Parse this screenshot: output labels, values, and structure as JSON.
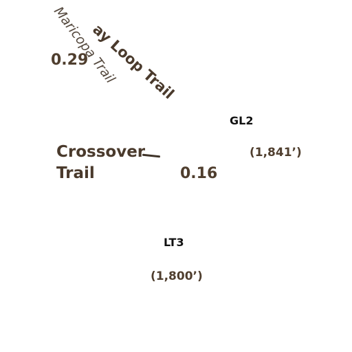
{
  "trails": {
    "loop_trail_partial": "ay Loop Trail",
    "maricopa_trail": "Maricopa Trail",
    "crossover_trail_line1": "Crossover",
    "crossover_trail_line2": "Trail"
  },
  "distances": {
    "upper_left": "0.29",
    "center": "0.16"
  },
  "points": {
    "gl2": {
      "name": "GL2",
      "elevation": "(1,841’)"
    },
    "lt3": {
      "name": "LT3",
      "elevation": "(1,800’)"
    }
  },
  "colors": {
    "background": "#ffffff",
    "trail_label": "#4a3a2c",
    "point_label": "#111111"
  }
}
